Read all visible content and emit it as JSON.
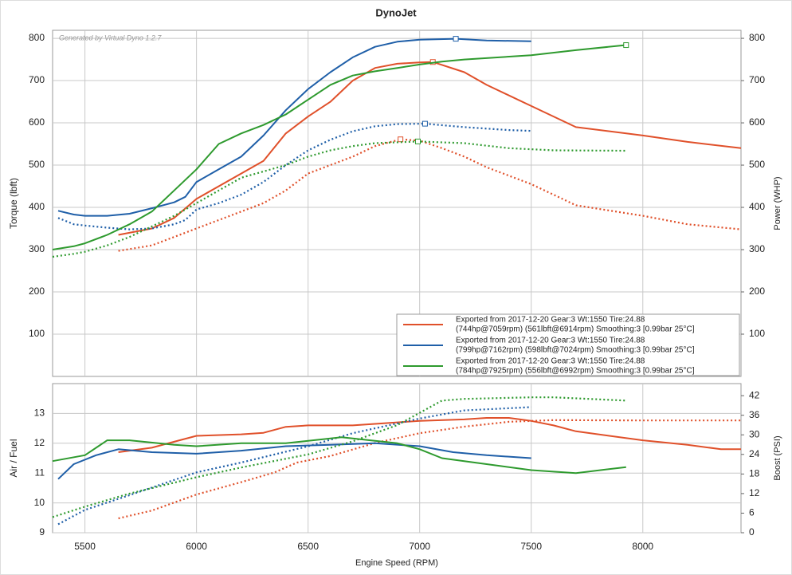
{
  "title": "DynoJet",
  "watermark": "Generated by Virtual Dyno 1.2.7",
  "chart_data": [
    {
      "type": "line",
      "ylabel": "Torque (lbft)",
      "y2label": "Power (WHP)",
      "xlim": [
        5355,
        8440
      ],
      "ylim": [
        0,
        819
      ],
      "yticks": [
        100,
        200,
        300,
        400,
        500,
        600,
        700,
        800
      ],
      "y2lim": [
        0,
        819
      ],
      "y2ticks": [
        100,
        200,
        300,
        400,
        500,
        600,
        700,
        800
      ],
      "grid": true,
      "peak_markers": true,
      "legend": [
        {
          "color": "#e0502a",
          "lines": [
            "Exported from 2017-12-20  Gear:3 Wt:1550 Tire:24.88",
            "(744hp@7059rpm) (561lbft@6914rpm) Smoothing:3 [0.99bar 25°C]"
          ]
        },
        {
          "color": "#1f5fa8",
          "lines": [
            "Exported from 2017-12-20  Gear:3 Wt:1550 Tire:24.88",
            "(799hp@7162rpm) (598lbft@7024rpm) Smoothing:3 [0.99bar 25°C]"
          ]
        },
        {
          "color": "#2e9a2e",
          "lines": [
            "Exported from 2017-12-20  Gear:3 Wt:1550 Tire:24.88",
            "(784hp@7925rpm) (556lbft@6992rpm) Smoothing:3 [0.99bar 25°C]"
          ]
        }
      ],
      "series": [
        {
          "color": "#e0502a",
          "style": "solid",
          "axis": "y2",
          "x": [
            5650,
            5800,
            5900,
            6000,
            6200,
            6300,
            6400,
            6500,
            6600,
            6700,
            6800,
            6900,
            7000,
            7059,
            7200,
            7300,
            7500,
            7700,
            8000,
            8200,
            8440
          ],
          "values": [
            335,
            350,
            375,
            420,
            480,
            510,
            575,
            615,
            650,
            700,
            730,
            740,
            743,
            744,
            720,
            690,
            640,
            590,
            570,
            555,
            540
          ]
        },
        {
          "color": "#e0502a",
          "style": "dotted",
          "x": [
            5650,
            5800,
            5900,
            6000,
            6200,
            6300,
            6400,
            6500,
            6600,
            6700,
            6800,
            6914,
            7000,
            7100,
            7200,
            7300,
            7500,
            7700,
            8000,
            8200,
            8440
          ],
          "values": [
            297,
            310,
            330,
            350,
            390,
            410,
            440,
            480,
            500,
            520,
            545,
            561,
            558,
            540,
            520,
            495,
            455,
            405,
            380,
            360,
            348
          ]
        },
        {
          "color": "#1f5fa8",
          "style": "solid",
          "axis": "y2",
          "x": [
            5380,
            5450,
            5500,
            5600,
            5700,
            5800,
            5900,
            5950,
            6000,
            6100,
            6200,
            6300,
            6400,
            6500,
            6600,
            6700,
            6800,
            6900,
            7000,
            7162,
            7300,
            7500
          ],
          "values": [
            392,
            383,
            380,
            380,
            385,
            398,
            412,
            425,
            460,
            490,
            520,
            570,
            630,
            680,
            720,
            755,
            780,
            792,
            797,
            799,
            795,
            793
          ]
        },
        {
          "color": "#1f5fa8",
          "style": "dotted",
          "x": [
            5380,
            5450,
            5500,
            5600,
            5700,
            5800,
            5900,
            5950,
            6000,
            6100,
            6200,
            6300,
            6400,
            6500,
            6600,
            6700,
            6800,
            6900,
            7024,
            7200,
            7400,
            7500
          ],
          "values": [
            375,
            360,
            357,
            352,
            348,
            350,
            360,
            370,
            395,
            410,
            430,
            460,
            500,
            535,
            560,
            580,
            592,
            597,
            598,
            590,
            583,
            581
          ]
        },
        {
          "color": "#2e9a2e",
          "style": "solid",
          "axis": "y2",
          "x": [
            5355,
            5450,
            5500,
            5600,
            5700,
            5800,
            5900,
            6000,
            6100,
            6200,
            6300,
            6400,
            6500,
            6600,
            6700,
            6800,
            6900,
            7000,
            7100,
            7200,
            7500,
            7700,
            7925
          ],
          "values": [
            300,
            308,
            315,
            335,
            360,
            390,
            440,
            490,
            550,
            575,
            595,
            620,
            655,
            690,
            712,
            722,
            730,
            738,
            745,
            750,
            760,
            772,
            784
          ]
        },
        {
          "color": "#2e9a2e",
          "style": "dotted",
          "x": [
            5355,
            5450,
            5500,
            5600,
            5700,
            5800,
            5900,
            6000,
            6100,
            6200,
            6300,
            6400,
            6500,
            6600,
            6700,
            6800,
            6992,
            7200,
            7400,
            7600,
            7925
          ],
          "values": [
            283,
            290,
            295,
            310,
            330,
            355,
            380,
            410,
            440,
            470,
            485,
            500,
            520,
            535,
            545,
            552,
            556,
            552,
            540,
            535,
            534
          ]
        }
      ]
    },
    {
      "type": "line",
      "xlabel": "Engine Speed (RPM)",
      "ylabel": "Air / Fuel",
      "y2label": "Boost (PSI)",
      "xlim": [
        5355,
        8440
      ],
      "xticks": [
        5500,
        6000,
        6500,
        7000,
        7500,
        8000
      ],
      "ylim": [
        9,
        14
      ],
      "yticks": [
        9,
        10,
        11,
        12,
        13
      ],
      "y2lim": [
        0,
        45.7
      ],
      "y2ticks": [
        0,
        6,
        12,
        18,
        24,
        30,
        36,
        42
      ],
      "grid": true,
      "peak_markers": false,
      "series": [
        {
          "color": "#e0502a",
          "style": "solid",
          "x": [
            5650,
            5800,
            5900,
            6000,
            6200,
            6300,
            6400,
            6500,
            6700,
            6900,
            7000,
            7200,
            7300,
            7400,
            7500,
            7600,
            7700,
            8000,
            8200,
            8350,
            8440
          ],
          "values": [
            11.7,
            11.85,
            12.05,
            12.25,
            12.3,
            12.35,
            12.55,
            12.6,
            12.6,
            12.7,
            12.75,
            12.8,
            12.85,
            12.85,
            12.75,
            12.6,
            12.4,
            12.1,
            11.95,
            11.8,
            11.8
          ]
        },
        {
          "color": "#e0502a",
          "style": "dotted",
          "axis": "y2",
          "x": [
            5650,
            5800,
            6000,
            6200,
            6350,
            6450,
            6600,
            6800,
            7000,
            7200,
            7400,
            7600,
            8000,
            8440
          ],
          "values": [
            4.4,
            6.8,
            11.7,
            15.5,
            18.5,
            21.5,
            23.5,
            27.5,
            30.5,
            32.5,
            34,
            34.5,
            34.4,
            34.4
          ]
        },
        {
          "color": "#1f5fa8",
          "style": "solid",
          "x": [
            5380,
            5450,
            5550,
            5650,
            5800,
            6000,
            6200,
            6400,
            6600,
            6800,
            7000,
            7150,
            7300,
            7500
          ],
          "values": [
            10.8,
            11.3,
            11.6,
            11.8,
            11.7,
            11.65,
            11.75,
            11.9,
            11.95,
            12.0,
            11.9,
            11.7,
            11.6,
            11.5
          ]
        },
        {
          "color": "#1f5fa8",
          "style": "dotted",
          "axis": "y2",
          "x": [
            5380,
            5500,
            5700,
            6000,
            6200,
            6500,
            6700,
            7000,
            7200,
            7500
          ],
          "values": [
            2.6,
            7,
            11.5,
            18.5,
            21.5,
            26.5,
            30.5,
            35,
            37.5,
            38.5
          ]
        },
        {
          "color": "#2e9a2e",
          "style": "solid",
          "x": [
            5355,
            5500,
            5600,
            5700,
            5900,
            6000,
            6200,
            6400,
            6650,
            6900,
            7000,
            7100,
            7300,
            7500,
            7700,
            7925
          ],
          "values": [
            11.4,
            11.6,
            12.1,
            12.1,
            11.95,
            11.9,
            12.0,
            12.0,
            12.2,
            12.0,
            11.8,
            11.5,
            11.3,
            11.1,
            11.0,
            11.2
          ]
        },
        {
          "color": "#2e9a2e",
          "style": "dotted",
          "axis": "y2",
          "x": [
            5355,
            5500,
            5700,
            6000,
            6200,
            6500,
            6700,
            6900,
            7100,
            7200,
            7500,
            7600,
            7925
          ],
          "values": [
            4.8,
            8,
            12,
            17,
            20,
            24,
            28,
            33,
            40.5,
            41,
            41.5,
            41.5,
            40.5
          ]
        }
      ]
    }
  ]
}
